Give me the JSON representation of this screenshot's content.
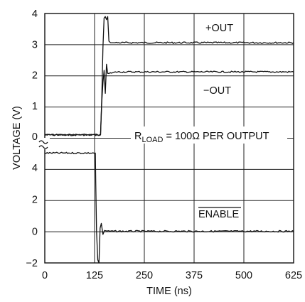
{
  "chart_data": {
    "type": "line",
    "xlabel": "TIME (ns)",
    "ylabel": "VOLTAGE (V)",
    "x_ticks": [
      "0",
      "125",
      "250",
      "375",
      "500",
      "625"
    ],
    "y_ticks_upper": [
      "4",
      "3",
      "2",
      "1",
      "0"
    ],
    "y_ticks_lower": [
      "4",
      "2",
      "0",
      "−2"
    ],
    "xlim": [
      0,
      625
    ],
    "upper_ylim": [
      0,
      4
    ],
    "lower_ylim": [
      -2,
      6
    ],
    "grid": true,
    "annotations": {
      "pos_out": "+OUT",
      "neg_out": "−OUT",
      "rload_r": "R",
      "rload_sub": "LOAD",
      "rload_rest": " = 100Ω PER OUTPUT",
      "enable": "ENABLE"
    },
    "series": [
      {
        "name": "+OUT",
        "panel": "upper",
        "x": [
          0,
          140,
          143,
          146,
          149,
          152,
          155,
          158,
          161,
          165,
          170,
          180,
          200,
          625
        ],
        "y": [
          0.05,
          0.05,
          1.2,
          2.9,
          3.85,
          3.9,
          3.8,
          3.9,
          3.1,
          3.05,
          3.05,
          3.05,
          3.05,
          3.05
        ]
      },
      {
        "name": "−OUT",
        "panel": "upper",
        "x": [
          0,
          140,
          143,
          146,
          149,
          152,
          155,
          158,
          165,
          180,
          625
        ],
        "y": [
          0.05,
          0.05,
          1.1,
          1.75,
          2.15,
          1.4,
          2.35,
          2.05,
          2.05,
          2.1,
          2.1
        ],
        "style": "gray"
      },
      {
        "name": "ENABLE",
        "panel": "lower",
        "x": [
          0,
          127,
          128,
          130,
          133,
          136,
          139,
          142,
          146,
          150,
          160,
          625
        ],
        "y": [
          4.95,
          4.95,
          3.0,
          0.0,
          -1.8,
          -2.0,
          0.2,
          0.5,
          -0.2,
          0.05,
          0.0,
          0.0
        ]
      }
    ]
  }
}
